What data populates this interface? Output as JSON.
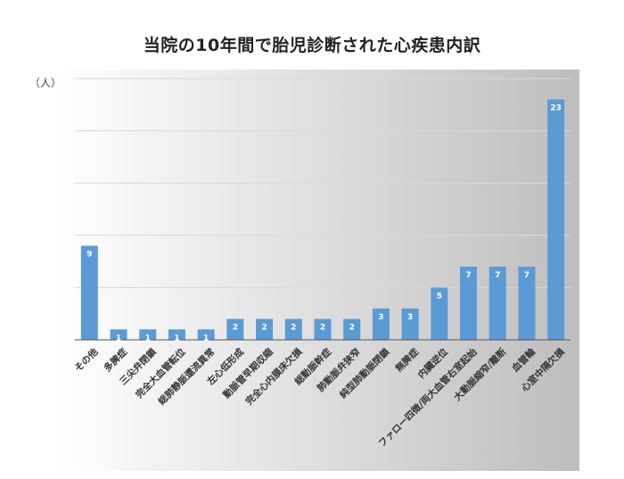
{
  "chart_data": {
    "type": "bar",
    "title": "当院の10年間で胎児診断された心疾患内訳",
    "ylabel": "（人）",
    "xlabel": "",
    "ylim": [
      0,
      25
    ],
    "grid": true,
    "bar_color": "#5b9bd5",
    "categories": [
      "その他",
      "多脾症",
      "三尖弁閉鎖",
      "完全大血管転位",
      "総肺静脈還流異常",
      "左心低形成",
      "動脈管早期収縮",
      "完全心内膜床欠損",
      "総動脈幹症",
      "肺動脈弁狭窄",
      "純型肺動脈閉鎖",
      "無脾症",
      "内臓逆位",
      "ファロー四徴/両大血管右室起始",
      "大動脈縮窄/離断",
      "血管輪",
      "心室中隔欠損"
    ],
    "values": [
      9,
      1,
      1,
      1,
      1,
      2,
      2,
      2,
      2,
      2,
      3,
      3,
      5,
      7,
      7,
      7,
      23
    ],
    "data_labels": [
      "9",
      "1",
      "1",
      "1",
      "1",
      "2",
      "2",
      "2",
      "2",
      "2",
      "3",
      "3",
      "5",
      "7",
      "7",
      "7",
      "23"
    ]
  }
}
